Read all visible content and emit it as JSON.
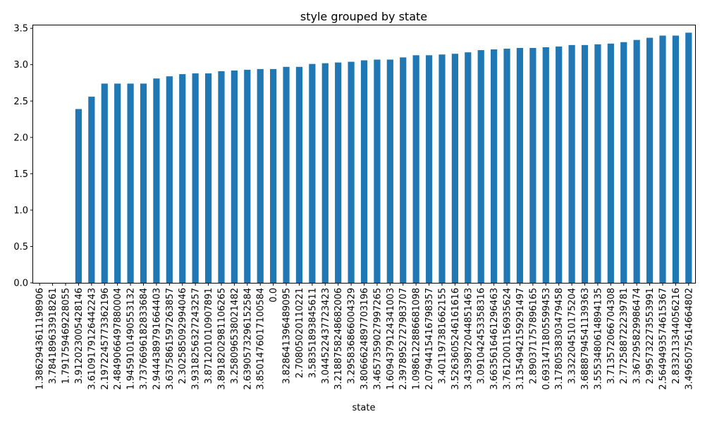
{
  "chart_data": {
    "type": "bar",
    "title": "style grouped by state",
    "xlabel": "state",
    "ylabel": "",
    "ylim": [
      0,
      3.55
    ],
    "yticks": [
      "0.0",
      "0.5",
      "1.0",
      "1.5",
      "2.0",
      "2.5",
      "3.0",
      "3.5"
    ],
    "grid": false,
    "bar_color": "#1f77b4",
    "categories": [
      "1.3862943611198906",
      "3.784189633918261",
      "1.791759469228055",
      "3.912023005428146",
      "3.6109179126442243",
      "2.1972245773362196",
      "2.4849066497880004",
      "1.9459101490553132",
      "3.7376696182833684",
      "2.9444389791664403",
      "3.6375861597263857",
      "2.302585092994046",
      "3.9318256327243257",
      "3.871201010907891",
      "3.8918202981106265",
      "3.258096538021482",
      "2.6390573296152584",
      "3.8501476017100584",
      "0.0",
      "3.828641396489095",
      "2.70805020110221",
      "3.58351893845611",
      "3.044522437723423",
      "3.2188758248682006",
      "3.295836866004329",
      "3.8066624897703196",
      "3.4657359027997265",
      "1.6094379124341003",
      "2.3978952727983707",
      "1.0986122886681098",
      "2.0794415416798357",
      "3.401197381662155",
      "3.5263605246161616",
      "3.4339872044851463",
      "3.091042453358316",
      "3.6635616461296463",
      "3.7612001156935624",
      "3.1354942159291497",
      "2.890371757896165",
      "0.6931471805599453",
      "3.1780538303479458",
      "3.332204510175204",
      "3.6888794541139363",
      "3.5553480614894135",
      "3.713572066704308",
      "2.772588722239781",
      "3.367295829986474",
      "2.995732273553991",
      "2.5649493574615367",
      "2.833213344056216",
      "3.4965075614664802"
    ],
    "values": [
      0.0,
      0.0,
      0.0,
      2.39,
      2.56,
      2.74,
      2.74,
      2.74,
      2.74,
      2.81,
      2.84,
      2.87,
      2.88,
      2.88,
      2.91,
      2.92,
      2.93,
      2.94,
      2.94,
      2.97,
      2.97,
      3.01,
      3.02,
      3.03,
      3.04,
      3.06,
      3.07,
      3.07,
      3.1,
      3.13,
      3.13,
      3.14,
      3.15,
      3.17,
      3.2,
      3.21,
      3.22,
      3.23,
      3.23,
      3.24,
      3.25,
      3.27,
      3.27,
      3.28,
      3.29,
      3.31,
      3.34,
      3.37,
      3.4,
      3.4,
      3.44
    ]
  }
}
